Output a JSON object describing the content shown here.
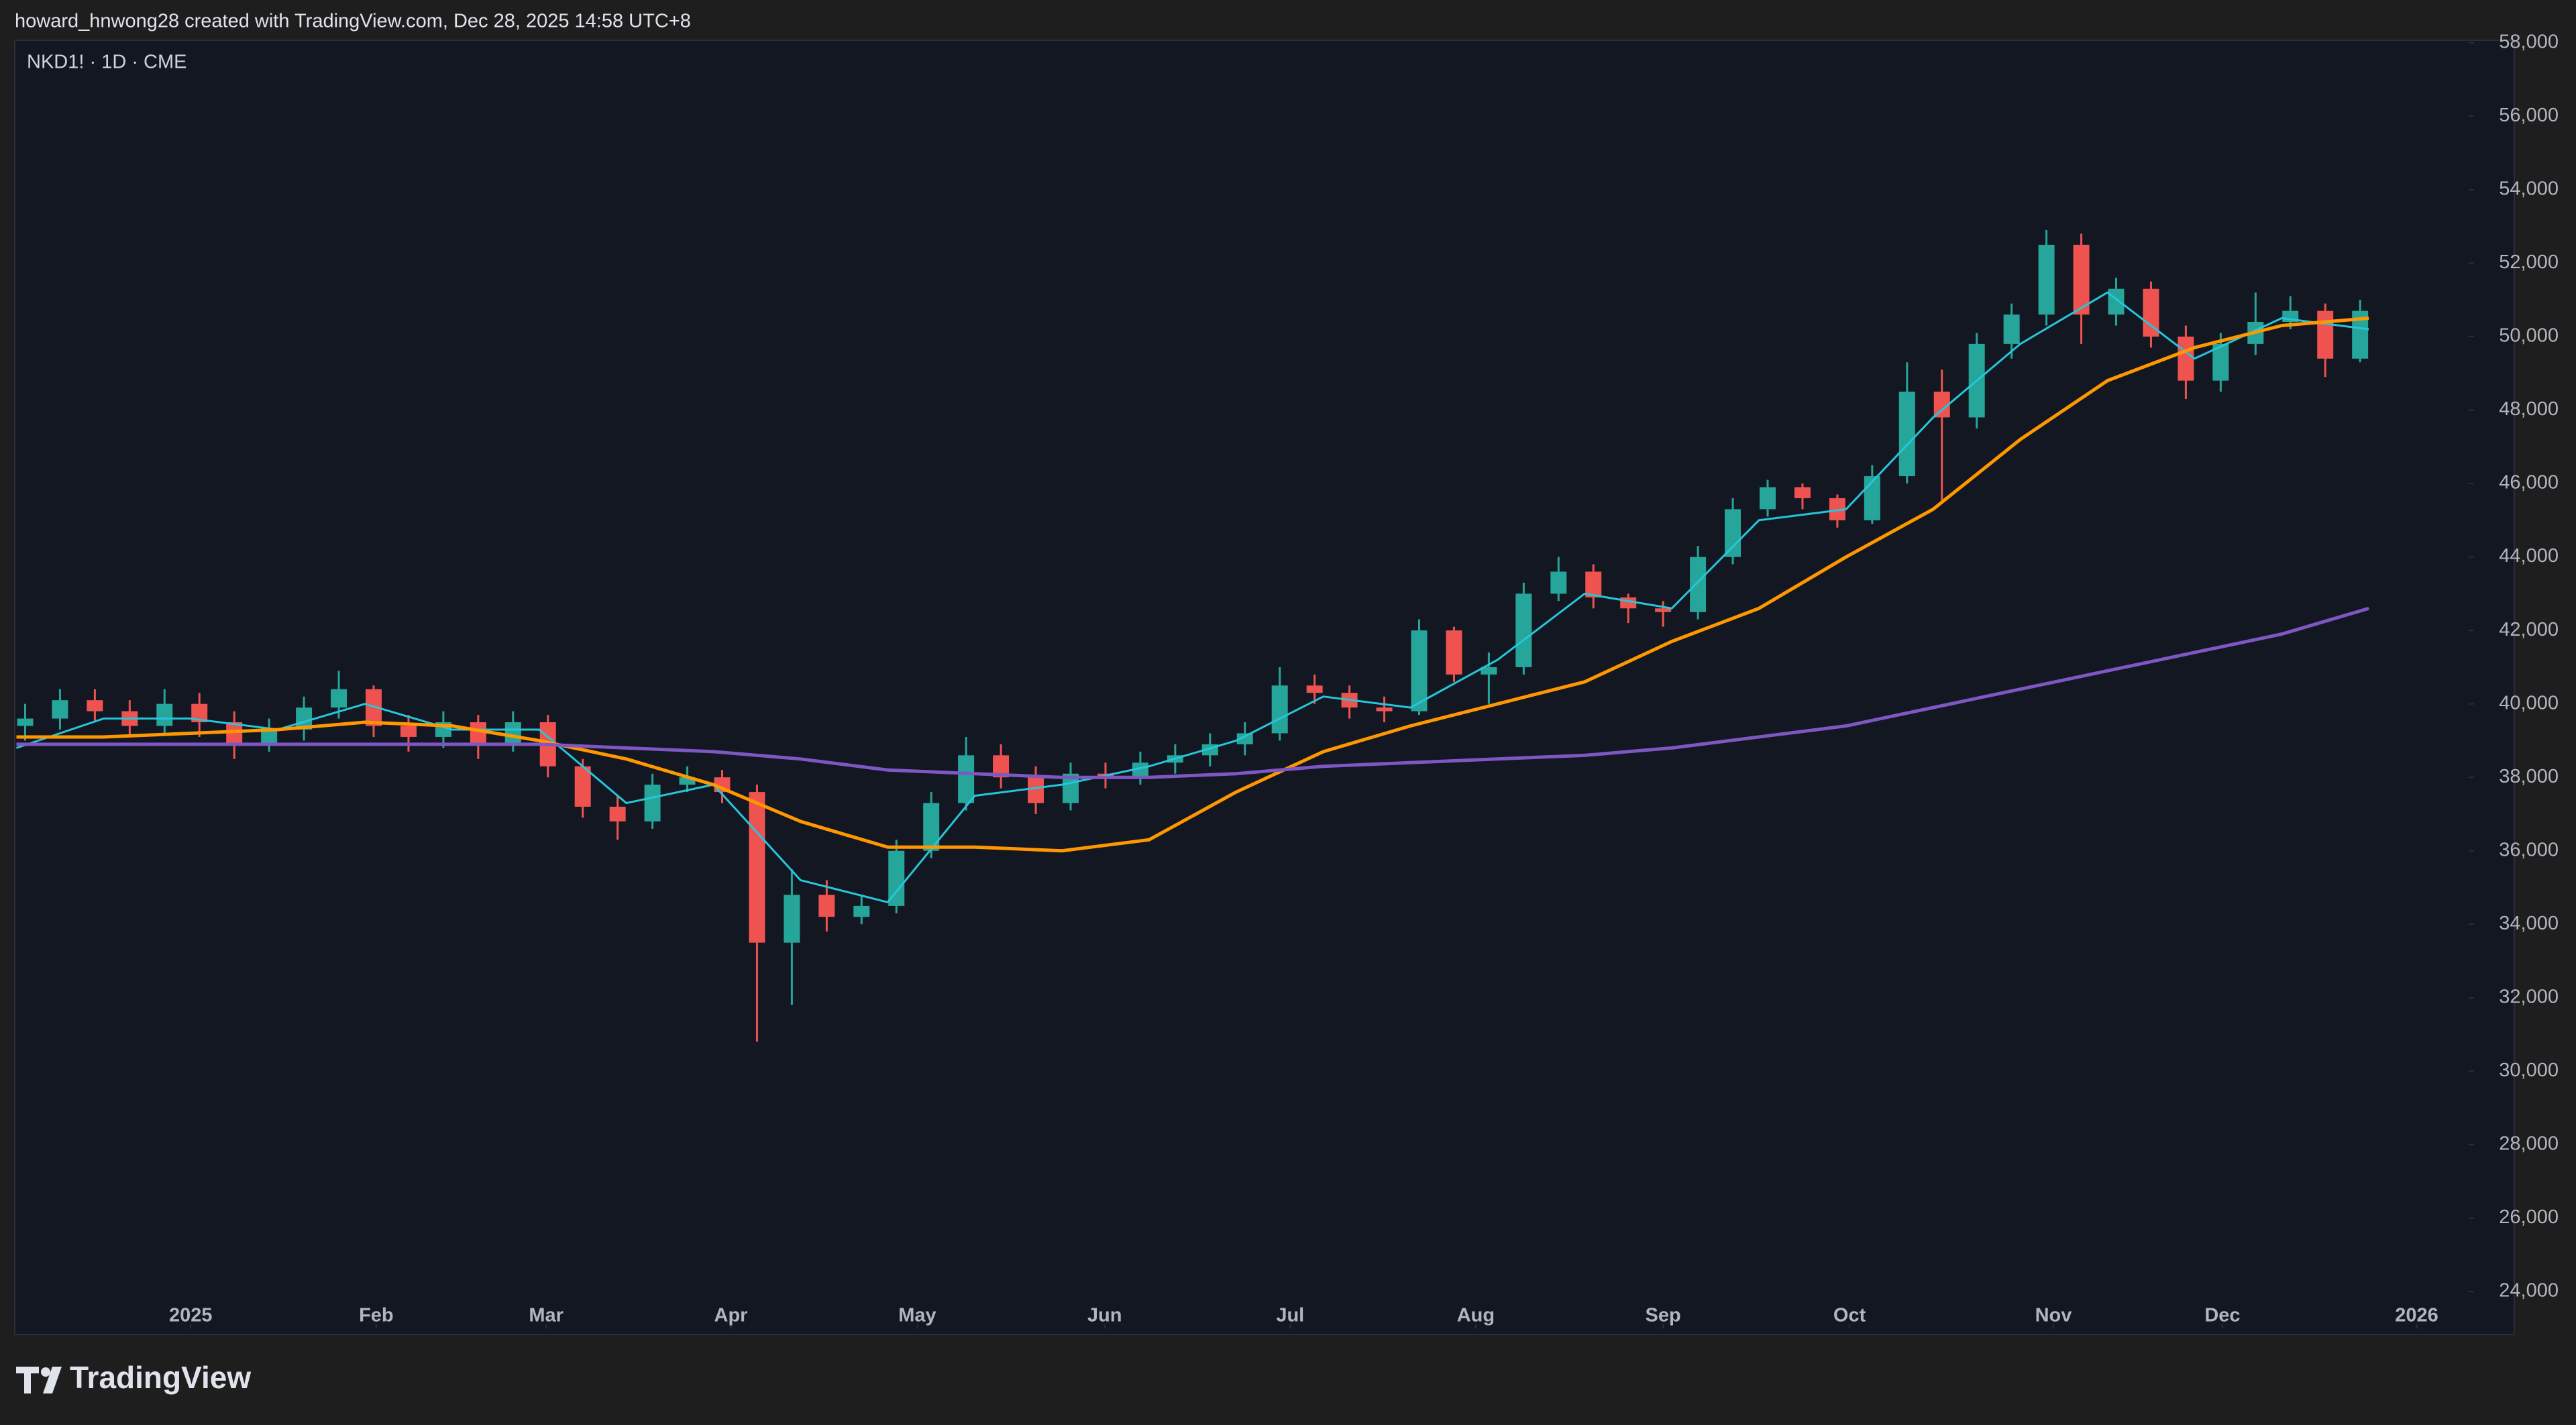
{
  "header": "howard_hnwong28 created with TradingView.com, Dec 28, 2025 14:58 UTC+8",
  "footer": "TradingView",
  "chart_data": {
    "type": "candlestick",
    "symbol": "NKD1! · 1D · CME",
    "up_color": "#26a69a",
    "down_color": "#ef5350",
    "xlim": [
      0,
      281
    ],
    "ylim": [
      22850,
      58050
    ],
    "xticks": [
      {
        "value": 20,
        "label": "2025"
      },
      {
        "value": 41.3,
        "label": "Feb"
      },
      {
        "value": 60.8,
        "label": "Mar"
      },
      {
        "value": 82,
        "label": "Apr"
      },
      {
        "value": 103.4,
        "label": "May"
      },
      {
        "value": 124.9,
        "label": "Jun"
      },
      {
        "value": 146.2,
        "label": "Jul"
      },
      {
        "value": 167.5,
        "label": "Aug"
      },
      {
        "value": 189,
        "label": "Sep"
      },
      {
        "value": 210.4,
        "label": "Oct"
      },
      {
        "value": 233.8,
        "label": "Nov"
      },
      {
        "value": 253.2,
        "label": "Dec"
      },
      {
        "value": 275.5,
        "label": "2026"
      }
    ],
    "yticks": [
      {
        "value": 24000,
        "label": "24,000"
      },
      {
        "value": 26000,
        "label": "26,000"
      },
      {
        "value": 28000,
        "label": "28,000"
      },
      {
        "value": 30000,
        "label": "30,000"
      },
      {
        "value": 32000,
        "label": "32,000"
      },
      {
        "value": 34000,
        "label": "34,000"
      },
      {
        "value": 36000,
        "label": "36,000"
      },
      {
        "value": 38000,
        "label": "38,000"
      },
      {
        "value": 40000,
        "label": "40,000"
      },
      {
        "value": 42000,
        "label": "42,000"
      },
      {
        "value": 44000,
        "label": "44,000"
      },
      {
        "value": 46000,
        "label": "46,000"
      },
      {
        "value": 48000,
        "label": "48,000"
      },
      {
        "value": 50000,
        "label": "50,000"
      },
      {
        "value": 52000,
        "label": "52,000"
      },
      {
        "value": 54000,
        "label": "54,000"
      },
      {
        "value": 56000,
        "label": "56,000"
      },
      {
        "value": 58000,
        "label": "58,000"
      }
    ],
    "candle_x": [
      1,
      5,
      9,
      13,
      17,
      21,
      25,
      29,
      33,
      37,
      41,
      45,
      49,
      53,
      57,
      61,
      65,
      69,
      73,
      77,
      81,
      85,
      89,
      93,
      97,
      101,
      105,
      109,
      113,
      117,
      121,
      125,
      129,
      133,
      137,
      141,
      145,
      149,
      153,
      157,
      161,
      165,
      169,
      173,
      177,
      181,
      185,
      189,
      193,
      197,
      201,
      205,
      209,
      213,
      217,
      221,
      225,
      229,
      233,
      237,
      241,
      245,
      249,
      253,
      257,
      261,
      265,
      269
    ],
    "candles": [
      [
        39400,
        40000,
        39000,
        39600
      ],
      [
        39600,
        40400,
        39300,
        40100
      ],
      [
        40100,
        40400,
        39500,
        39800
      ],
      [
        39800,
        40100,
        39100,
        39400
      ],
      [
        39400,
        40400,
        39200,
        40000
      ],
      [
        40000,
        40300,
        39100,
        39500
      ],
      [
        39500,
        39800,
        38500,
        38900
      ],
      [
        38900,
        39600,
        38700,
        39300
      ],
      [
        39300,
        40200,
        39000,
        39900
      ],
      [
        39900,
        40900,
        39600,
        40400
      ],
      [
        40400,
        40500,
        39100,
        39400
      ],
      [
        39400,
        39700,
        38700,
        39100
      ],
      [
        39100,
        39800,
        38800,
        39500
      ],
      [
        39500,
        39700,
        38500,
        38900
      ],
      [
        38900,
        39800,
        38700,
        39500
      ],
      [
        39500,
        39700,
        38000,
        38300
      ],
      [
        38300,
        38500,
        36900,
        37200
      ],
      [
        37200,
        37500,
        36300,
        36800
      ],
      [
        36800,
        38100,
        36600,
        37800
      ],
      [
        37800,
        38300,
        37600,
        38000
      ],
      [
        38000,
        38200,
        37300,
        37600
      ],
      [
        37600,
        37800,
        30800,
        33500
      ],
      [
        33500,
        35500,
        31800,
        34800
      ],
      [
        34800,
        35200,
        33800,
        34200
      ],
      [
        34200,
        34800,
        34000,
        34500
      ],
      [
        34500,
        36300,
        34300,
        36000
      ],
      [
        36000,
        37600,
        35800,
        37300
      ],
      [
        37300,
        39100,
        37100,
        38600
      ],
      [
        38600,
        38900,
        37700,
        38000
      ],
      [
        38000,
        38300,
        37000,
        37300
      ],
      [
        37300,
        38400,
        37100,
        38100
      ],
      [
        38100,
        38400,
        37700,
        38000
      ],
      [
        38000,
        38700,
        37800,
        38400
      ],
      [
        38400,
        38900,
        38100,
        38600
      ],
      [
        38600,
        39200,
        38300,
        38900
      ],
      [
        38900,
        39500,
        38600,
        39200
      ],
      [
        39200,
        41000,
        39000,
        40500
      ],
      [
        40500,
        40800,
        40000,
        40300
      ],
      [
        40300,
        40500,
        39600,
        39900
      ],
      [
        39900,
        40200,
        39500,
        39800
      ],
      [
        39800,
        42300,
        39700,
        42000
      ],
      [
        42000,
        42100,
        40600,
        40800
      ],
      [
        40800,
        41400,
        40000,
        41000
      ],
      [
        41000,
        43300,
        40800,
        43000
      ],
      [
        43000,
        44000,
        42800,
        43600
      ],
      [
        43600,
        43800,
        42600,
        42900
      ],
      [
        42900,
        43000,
        42200,
        42600
      ],
      [
        42600,
        42800,
        42100,
        42500
      ],
      [
        42500,
        44300,
        42300,
        44000
      ],
      [
        44000,
        45600,
        43800,
        45300
      ],
      [
        45300,
        46100,
        45100,
        45900
      ],
      [
        45900,
        46000,
        45300,
        45600
      ],
      [
        45600,
        45700,
        44800,
        45000
      ],
      [
        45000,
        46500,
        44900,
        46200
      ],
      [
        46200,
        49300,
        46000,
        48500
      ],
      [
        48500,
        49100,
        45500,
        47800
      ],
      [
        47800,
        50100,
        47500,
        49800
      ],
      [
        49800,
        50900,
        49400,
        50600
      ],
      [
        50600,
        52900,
        50300,
        52500
      ],
      [
        52500,
        52800,
        49800,
        50600
      ],
      [
        50600,
        51600,
        50300,
        51300
      ],
      [
        51300,
        51500,
        49700,
        50000
      ],
      [
        50000,
        50300,
        48300,
        48800
      ],
      [
        48800,
        50100,
        48500,
        49800
      ],
      [
        49800,
        51200,
        49500,
        50400
      ],
      [
        50400,
        51100,
        50200,
        50700
      ],
      [
        50700,
        50900,
        48900,
        49400
      ],
      [
        49400,
        51000,
        49300,
        50700
      ]
    ],
    "x": [
      0,
      10,
      20,
      30,
      40,
      50,
      60,
      70,
      80,
      90,
      100,
      110,
      120,
      130,
      140,
      150,
      160,
      170,
      180,
      190,
      200,
      210,
      220,
      230,
      240,
      250,
      260,
      270
    ],
    "series": [
      {
        "color": "#26c6da",
        "values": [
          38800,
          39600,
          39600,
          39300,
          40000,
          39300,
          39300,
          37300,
          37800,
          35200,
          34600,
          37500,
          37800,
          38300,
          39000,
          40200,
          39900,
          41200,
          43000,
          42600,
          45000,
          45300,
          47800,
          49800,
          51200,
          49400,
          50500,
          50200
        ]
      },
      {
        "color": "#ff9800",
        "values": [
          39100,
          39100,
          39200,
          39300,
          39500,
          39400,
          39000,
          38500,
          37800,
          36800,
          36100,
          36100,
          36000,
          36300,
          37600,
          38700,
          39400,
          40000,
          40600,
          41700,
          42600,
          44000,
          45300,
          47200,
          48800,
          49700,
          50300,
          50500
        ]
      },
      {
        "color": "#7e57c2",
        "values": [
          38900,
          38900,
          38900,
          38900,
          38900,
          38900,
          38900,
          38800,
          38700,
          38500,
          38200,
          38100,
          38000,
          38000,
          38100,
          38300,
          38400,
          38500,
          38600,
          38800,
          39100,
          39400,
          39900,
          40400,
          40900,
          41400,
          41900,
          42600
        ]
      }
    ]
  }
}
